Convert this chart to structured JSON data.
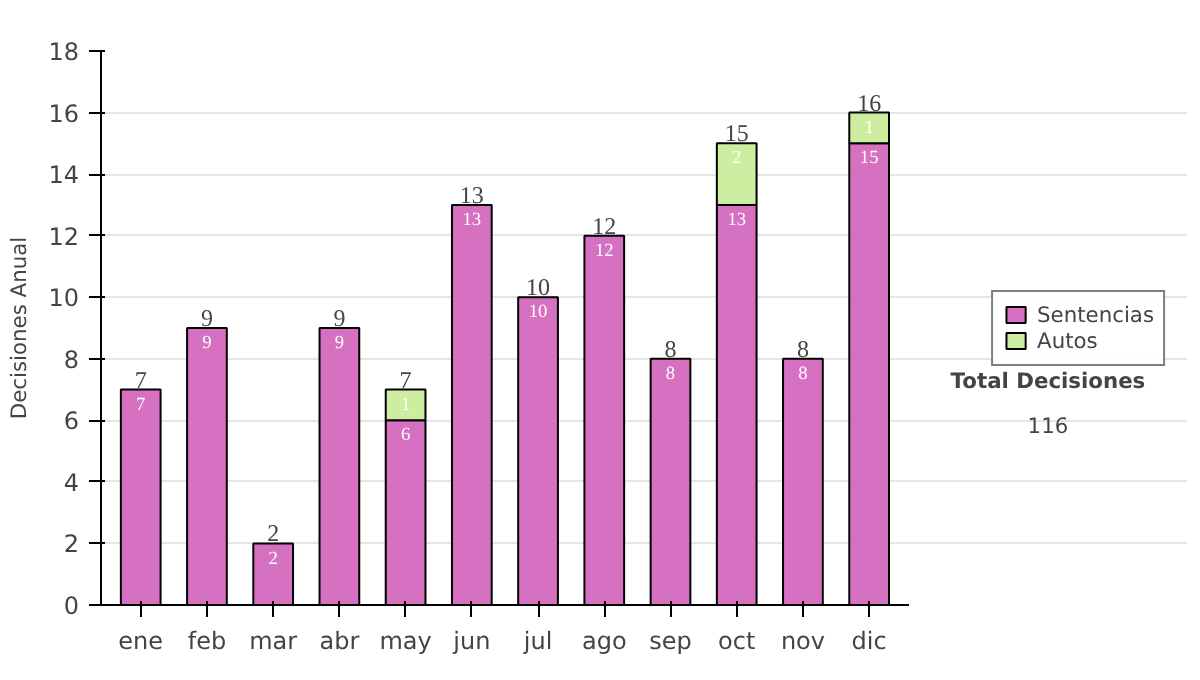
{
  "chart_data": {
    "type": "bar",
    "stacked": true,
    "ylabel": "Decisiones Anual",
    "categories": [
      "ene",
      "feb",
      "mar",
      "abr",
      "may",
      "jun",
      "jul",
      "ago",
      "sep",
      "oct",
      "nov",
      "dic"
    ],
    "series": [
      {
        "name": "Sentencias",
        "color": "#d670c0",
        "values": [
          7,
          9,
          2,
          9,
          6,
          13,
          10,
          12,
          8,
          13,
          8,
          15
        ]
      },
      {
        "name": "Autos",
        "color": "#cdeea0",
        "values": [
          null,
          null,
          null,
          null,
          1,
          null,
          null,
          null,
          null,
          2,
          null,
          1
        ]
      }
    ],
    "data_labels": true,
    "totals": [
      "7",
      "9",
      "2",
      "9",
      "7",
      "13",
      "10",
      "12",
      "8",
      "15",
      "8",
      "16"
    ],
    "ylim": [
      0,
      18
    ],
    "yticks": [
      0,
      2,
      4,
      6,
      8,
      10,
      12,
      14,
      16,
      18
    ],
    "grid": "y",
    "legend": "right",
    "annotations": [
      "Total Decisiones",
      "116"
    ]
  }
}
